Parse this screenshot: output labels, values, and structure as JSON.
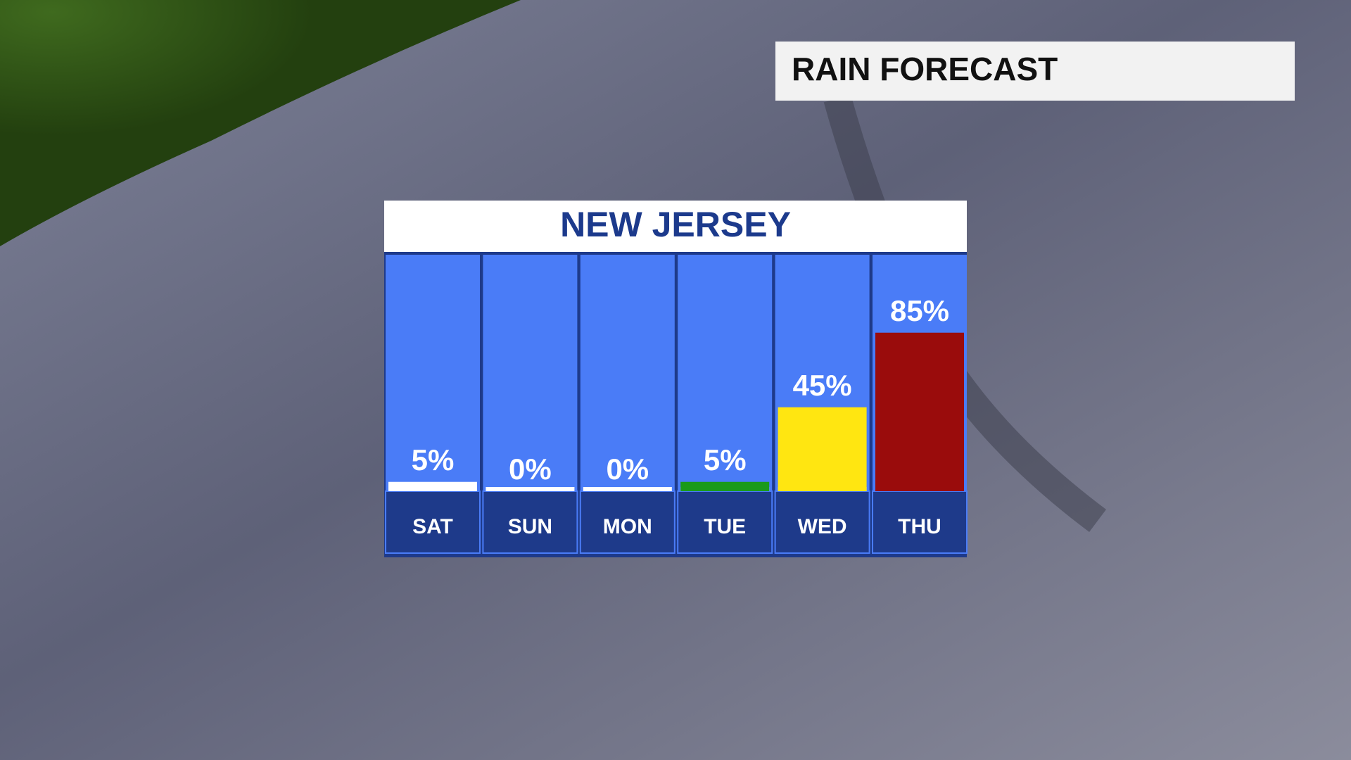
{
  "title": "RAIN FORECAST",
  "chart_data": {
    "type": "bar",
    "title": "NEW JERSEY",
    "categories": [
      "SAT",
      "SUN",
      "MON",
      "TUE",
      "WED",
      "THU"
    ],
    "values": [
      5,
      0,
      0,
      5,
      45,
      85
    ],
    "value_labels": [
      "5%",
      "0%",
      "0%",
      "5%",
      "45%",
      "85%"
    ],
    "colors": [
      "#ffffff",
      "#ffffff",
      "#ffffff",
      "#1a9a1a",
      "#ffe611",
      "#9a0c0c"
    ],
    "ylim": [
      0,
      100
    ]
  }
}
